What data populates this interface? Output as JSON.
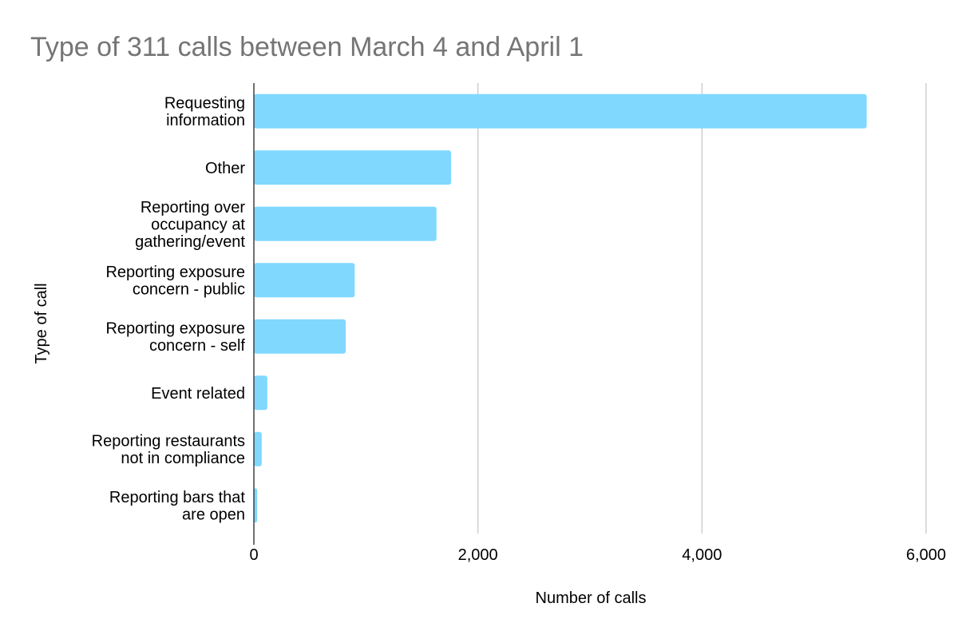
{
  "chart_data": {
    "type": "bar",
    "orientation": "horizontal",
    "title": "Type of 311 calls between March 4 and April 1",
    "xlabel": "Number of calls",
    "ylabel": "Type of call",
    "categories": [
      "Requesting information",
      "Other",
      "Reporting over occupancy at gathering/event",
      "Reporting exposure concern - public",
      "Reporting exposure concern - self",
      "Event related",
      "Reporting restaurants not in compliance",
      "Reporting bars that are open"
    ],
    "category_label_lines": [
      [
        "Requesting",
        "information"
      ],
      [
        "Other"
      ],
      [
        "Reporting over",
        "occupancy at",
        "gathering/event"
      ],
      [
        "Reporting exposure",
        "concern - public"
      ],
      [
        "Reporting exposure",
        "concern - self"
      ],
      [
        "Event related"
      ],
      [
        "Reporting restaurants",
        "not in compliance"
      ],
      [
        "Reporting bars that",
        "are open"
      ]
    ],
    "values": [
      5470,
      1760,
      1630,
      900,
      820,
      120,
      70,
      30
    ],
    "xlim": [
      0,
      6000
    ],
    "xticks": [
      0,
      2000,
      4000,
      6000
    ],
    "xtick_labels": [
      "0",
      "2,000",
      "4,000",
      "6,000"
    ],
    "grid": true,
    "legend": "none",
    "bar_color": "#80d8ff"
  }
}
